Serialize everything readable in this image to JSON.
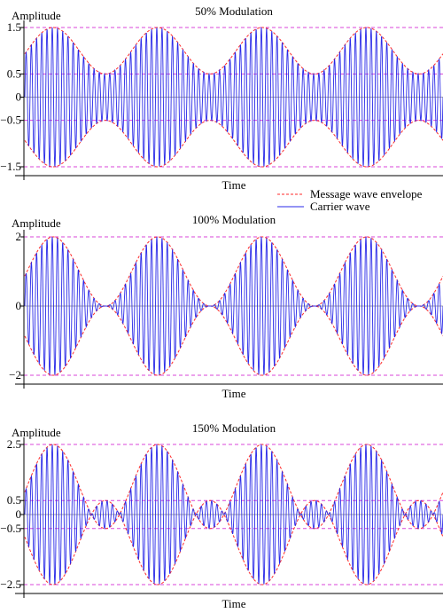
{
  "colors": {
    "envelope": "#ff2a2a",
    "carrier": "#2a2ae8",
    "guide": "#d946d9",
    "axis": "#000000",
    "zero_line": "#888888"
  },
  "legend": {
    "envelope_label": "Message wave envelope",
    "carrier_label": "Carrier wave",
    "placement": "between panel 1 and panel 2, right"
  },
  "chart_data": [
    {
      "type": "line",
      "title": "50% Modulation",
      "xlabel": "Time",
      "ylabel": "Amplitude",
      "modulation_index": 0.5,
      "ylim": [
        -1.6,
        1.55
      ],
      "yticks": [
        {
          "value": 1.5,
          "label": "1.5"
        },
        {
          "value": 0.5,
          "label": "0.5"
        },
        {
          "value": 0,
          "label": "0"
        },
        {
          "value": -0.5,
          "label": "−0.5"
        },
        {
          "value": -1.5,
          "label": "−1.5"
        }
      ],
      "guide_levels": [
        1.5,
        0.5,
        -0.5,
        -1.5
      ],
      "series": [
        {
          "name": "Message wave envelope",
          "style": "dashed",
          "upper": "1 + 0.5·cos(2π·t/4)",
          "lower": "−(1 + 0.5·cos(2π·t/4))"
        },
        {
          "name": "Carrier wave",
          "style": "solid",
          "expr": "(1 + 0.5·cos(2π·t/4))·sin(2π·t/0.2)"
        }
      ]
    },
    {
      "type": "line",
      "title": "100% Modulation",
      "xlabel": "Time",
      "ylabel": "Amplitude",
      "modulation_index": 1.0,
      "ylim": [
        -2.05,
        2.05
      ],
      "yticks": [
        {
          "value": 2,
          "label": "2"
        },
        {
          "value": 0,
          "label": "0"
        },
        {
          "value": -2,
          "label": "−2"
        }
      ],
      "guide_levels": [
        2,
        -2
      ],
      "series": [
        {
          "name": "Message wave envelope",
          "style": "dashed",
          "upper": "1 + cos(2π·t/4)",
          "lower": "−(1 + cos(2π·t/4))"
        },
        {
          "name": "Carrier wave",
          "style": "solid",
          "expr": "(1 + cos(2π·t/4))·sin(2π·t/0.2)"
        }
      ]
    },
    {
      "type": "line",
      "title": "150% Modulation",
      "xlabel": "Time",
      "ylabel": "Amplitude",
      "modulation_index": 1.5,
      "ylim": [
        -2.6,
        2.6
      ],
      "yticks": [
        {
          "value": 2.5,
          "label": "2.5"
        },
        {
          "value": 0.5,
          "label": "0.5"
        },
        {
          "value": 0,
          "label": "0"
        },
        {
          "value": -0.5,
          "label": "−0.5"
        },
        {
          "value": -2.5,
          "label": "−2.5"
        }
      ],
      "guide_levels": [
        2.5,
        0.5,
        -0.5,
        -2.5
      ],
      "series": [
        {
          "name": "Message wave envelope",
          "style": "dashed",
          "upper": "1 + 1.5·cos(2π·t/4)",
          "lower": "−(1 + 1.5·cos(2π·t/4))"
        },
        {
          "name": "Carrier wave",
          "style": "solid",
          "expr": "(1 + 1.5·cos(2π·t/4))·sin(2π·t/0.2)"
        }
      ]
    }
  ]
}
